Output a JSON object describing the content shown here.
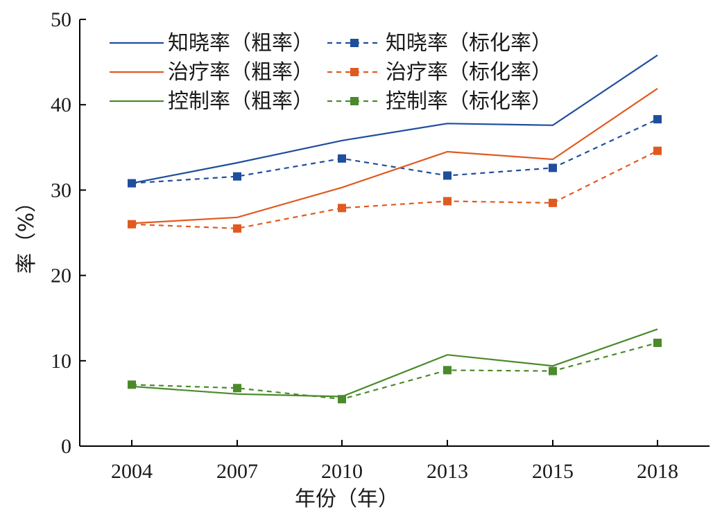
{
  "chart_data": {
    "type": "line",
    "xlabel": "年份（年）",
    "ylabel": "率（%）",
    "categories": [
      "2004",
      "2007",
      "2010",
      "2013",
      "2015",
      "2018"
    ],
    "yticks": [
      "0",
      "10",
      "20",
      "30",
      "40",
      "50"
    ],
    "ylim": [
      0,
      50
    ],
    "grid": false,
    "legend_position": "top-left",
    "series": [
      {
        "name": "知晓率（粗率）",
        "color": "#1f4e9c",
        "style": "solid",
        "marker": "none",
        "values": [
          30.8,
          33.2,
          35.8,
          37.8,
          37.6,
          45.8
        ]
      },
      {
        "name": "知晓率（标化率）",
        "color": "#1f4e9c",
        "style": "dashed",
        "marker": "square",
        "values": [
          30.8,
          31.6,
          33.7,
          31.7,
          32.6,
          38.3
        ]
      },
      {
        "name": "治疗率（粗率）",
        "color": "#e05a1f",
        "style": "solid",
        "marker": "none",
        "values": [
          26.1,
          26.8,
          30.3,
          34.5,
          33.6,
          41.9
        ]
      },
      {
        "name": "治疗率（标化率）",
        "color": "#e05a1f",
        "style": "dashed",
        "marker": "square",
        "values": [
          26.0,
          25.5,
          27.9,
          28.7,
          28.5,
          34.6
        ]
      },
      {
        "name": "控制率（粗率）",
        "color": "#4a8a2a",
        "style": "solid",
        "marker": "none",
        "values": [
          7.0,
          6.1,
          5.8,
          10.7,
          9.4,
          13.7
        ]
      },
      {
        "name": "控制率（标化率）",
        "color": "#4a8a2a",
        "style": "dashed",
        "marker": "square",
        "values": [
          7.2,
          6.8,
          5.5,
          8.9,
          8.8,
          12.1
        ]
      }
    ]
  }
}
